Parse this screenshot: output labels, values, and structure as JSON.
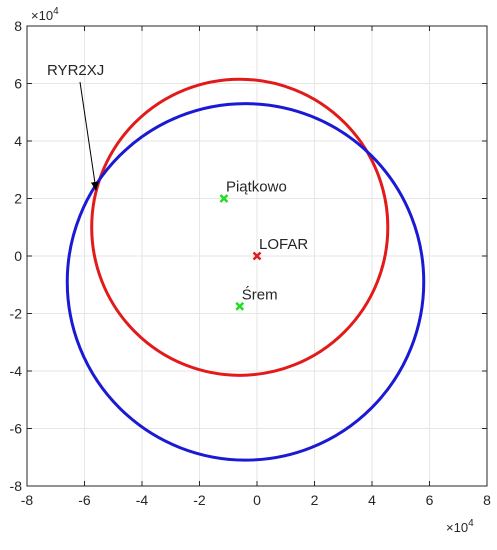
{
  "chart_data": {
    "type": "scatter",
    "title": "",
    "xlabel": "",
    "ylabel": "",
    "xlim": [
      -8,
      8
    ],
    "ylim": [
      -8,
      8
    ],
    "axis_multiplier": "×10^4",
    "x_exponent_label": {
      "base": "×10",
      "exp": "4"
    },
    "y_exponent_label": {
      "base": "×10",
      "exp": "4"
    },
    "xticks": [
      -8,
      -6,
      -4,
      -2,
      0,
      2,
      4,
      6,
      8
    ],
    "yticks": [
      -8,
      -6,
      -4,
      -2,
      0,
      2,
      4,
      6,
      8
    ],
    "xtick_labels": [
      "-8",
      "-6",
      "-4",
      "-2",
      "0",
      "2",
      "4",
      "6",
      "8"
    ],
    "ytick_labels": [
      "-8",
      "-6",
      "-4",
      "-2",
      "0",
      "2",
      "4",
      "6",
      "8"
    ],
    "grid": true,
    "circles": [
      {
        "color": "#e31a1a",
        "center": [
          -0.6,
          1.0
        ],
        "radius": 5.15
      },
      {
        "color": "#1a1ad4",
        "center": [
          -0.4,
          -0.9
        ],
        "radius": 6.2
      }
    ],
    "points": [
      {
        "name": "LOFAR",
        "x": 0.0,
        "y": 0.0,
        "color": "#e31a1a",
        "marker": "x"
      },
      {
        "name": "Piątkowo",
        "x": -1.15,
        "y": 2.0,
        "color": "#22dd22",
        "marker": "x"
      },
      {
        "name": "Śrem",
        "x": -0.6,
        "y": -1.75,
        "color": "#22dd22",
        "marker": "x"
      }
    ],
    "annotations": [
      {
        "text": "RYR2XJ",
        "target": [
          -5.6,
          2.3
        ]
      }
    ]
  }
}
